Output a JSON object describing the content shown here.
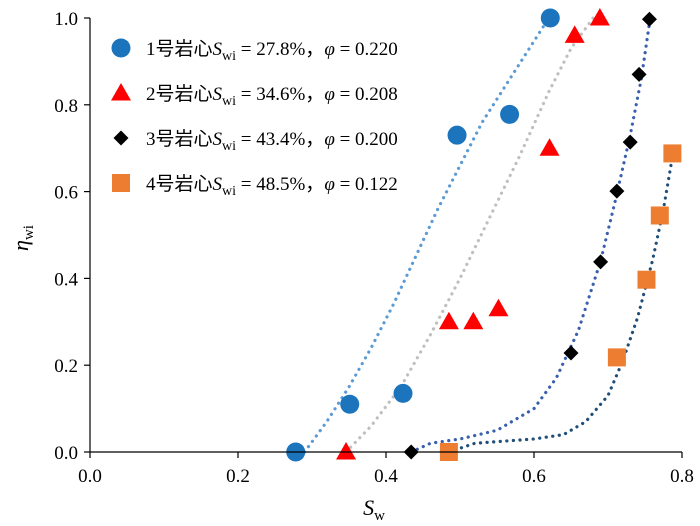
{
  "chart_data": {
    "type": "scatter",
    "title": "",
    "xlabel": "S",
    "xlabel_sub": "w",
    "ylabel": "η",
    "ylabel_sub": "wi",
    "xlim": [
      0,
      0.8
    ],
    "ylim": [
      0,
      1.0
    ],
    "x_ticks": [
      "0.0",
      "0.2",
      "0.4",
      "0.6",
      "0.8"
    ],
    "x_tick_values": [
      0,
      0.2,
      0.4,
      0.6,
      0.8
    ],
    "y_ticks": [
      "0.0",
      "0.2",
      "0.4",
      "0.6",
      "0.8",
      "1.0"
    ],
    "y_tick_values": [
      0,
      0.2,
      0.4,
      0.6,
      0.8,
      1.0
    ],
    "legend_position": "top-left",
    "series": [
      {
        "name": "1号岩心",
        "legend_prefix": "1号岩心",
        "swi_symbol": "S",
        "swi_sub": "wi",
        "swi_value": " = 27.8%，",
        "phi_symbol": "φ",
        "phi_value": " = 0.220",
        "marker": "circle",
        "color": "#1c75bc",
        "trend_color": "#5b9bd5",
        "x": [
          0.278,
          0.351,
          0.423,
          0.496,
          0.567,
          0.622
        ],
        "y": [
          0.0,
          0.11,
          0.135,
          0.73,
          0.778,
          1.0
        ],
        "trend_x": [
          0.29,
          0.32,
          0.35,
          0.38,
          0.41,
          0.44,
          0.47,
          0.5,
          0.53,
          0.56,
          0.59,
          0.62
        ],
        "trend_y": [
          0.0,
          0.07,
          0.15,
          0.24,
          0.34,
          0.45,
          0.56,
          0.66,
          0.76,
          0.84,
          0.92,
          1.0
        ]
      },
      {
        "name": "2号岩心",
        "legend_prefix": "2号岩心",
        "swi_symbol": "S",
        "swi_sub": "wi",
        "swi_value": " = 34.6%，",
        "phi_symbol": "φ",
        "phi_value": " = 0.208",
        "marker": "triangle",
        "color": "#ff0000",
        "trend_color": "#bfbfbf",
        "x": [
          0.346,
          0.485,
          0.518,
          0.552,
          0.621,
          0.655,
          0.689
        ],
        "y": [
          0.0,
          0.3,
          0.3,
          0.33,
          0.7,
          0.96,
          1.0
        ],
        "trend_x": [
          0.346,
          0.38,
          0.42,
          0.46,
          0.5,
          0.54,
          0.58,
          0.62,
          0.65,
          0.68
        ],
        "trend_y": [
          0.0,
          0.06,
          0.15,
          0.27,
          0.4,
          0.54,
          0.68,
          0.83,
          0.93,
          1.0
        ]
      },
      {
        "name": "3号岩心",
        "legend_prefix": "3号岩心",
        "swi_symbol": "S",
        "swi_sub": "wi",
        "swi_value": " = 43.4%，",
        "phi_symbol": "φ",
        "phi_value": " = 0.200",
        "marker": "diamond",
        "color": "#000000",
        "trend_color": "#3a5fad",
        "x": [
          0.434,
          0.65,
          0.69,
          0.712,
          0.73,
          0.742,
          0.756
        ],
        "y": [
          0.0,
          0.228,
          0.438,
          0.601,
          0.714,
          0.87,
          0.997
        ],
        "trend_x": [
          0.434,
          0.46,
          0.5,
          0.55,
          0.6,
          0.63,
          0.66,
          0.69,
          0.71,
          0.73,
          0.745,
          0.757
        ],
        "trend_y": [
          0.0,
          0.02,
          0.03,
          0.05,
          0.1,
          0.17,
          0.28,
          0.44,
          0.58,
          0.73,
          0.86,
          1.0
        ]
      },
      {
        "name": "4号岩心",
        "legend_prefix": "4号岩心",
        "swi_symbol": "S",
        "swi_sub": "wi",
        "swi_value": " = 48.5%，",
        "phi_symbol": "φ",
        "phi_value": " = 0.122",
        "marker": "square",
        "color": "#ed7d31",
        "trend_color": "#1f4e79",
        "x": [
          0.485,
          0.712,
          0.752,
          0.77,
          0.787
        ],
        "y": [
          0.0,
          0.218,
          0.397,
          0.545,
          0.688
        ],
        "trend_x": [
          0.485,
          0.52,
          0.56,
          0.6,
          0.64,
          0.67,
          0.7,
          0.72,
          0.74,
          0.76,
          0.775,
          0.787
        ],
        "trend_y": [
          0.0,
          0.02,
          0.025,
          0.03,
          0.04,
          0.07,
          0.13,
          0.21,
          0.31,
          0.44,
          0.56,
          0.68
        ]
      }
    ]
  }
}
